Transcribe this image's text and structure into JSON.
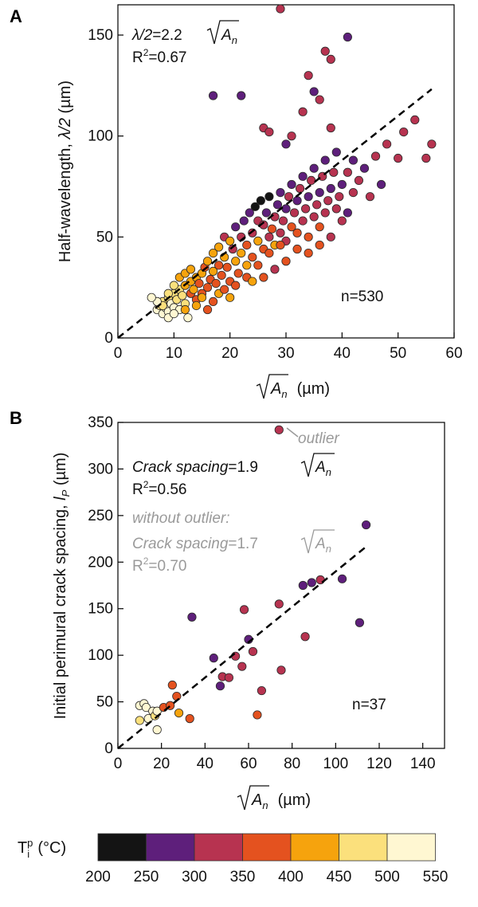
{
  "chart_data": [
    {
      "panel": "A",
      "type": "scatter",
      "xlabel": "√A_n (µm)",
      "xlabel_parts": {
        "sqrt_arg": "A",
        "sub": "n",
        "unit": "(µm)"
      },
      "ylabel": "Half-wavelength, λ/2 (µm)",
      "ylabel_parts": {
        "pre": "Half-wavelength, ",
        "ital": "λ/2",
        "post": " (µm)"
      },
      "xlim": [
        0,
        60
      ],
      "ylim": [
        0,
        165
      ],
      "xticks": [
        0,
        10,
        20,
        30,
        40,
        50,
        60
      ],
      "yticks": [
        0,
        50,
        100,
        150
      ],
      "fit": {
        "slope": 2.2,
        "x": [
          0,
          56
        ]
      },
      "equation_parts": {
        "lhs": "λ/2",
        "eq": "=2.2",
        "sqrt_arg": "A",
        "sub": "n"
      },
      "r2_parts": {
        "pre": "R",
        "sup": "2",
        "post": "=0.67"
      },
      "n_label": "n=530",
      "points_note": "530 points; representative subset listed",
      "points": [
        [
          7,
          14,
          6
        ],
        [
          7.5,
          16,
          5
        ],
        [
          8,
          12,
          6
        ],
        [
          8,
          18,
          5
        ],
        [
          8.5,
          15,
          6
        ],
        [
          9,
          13,
          6
        ],
        [
          9,
          20,
          5
        ],
        [
          9.5,
          17,
          6
        ],
        [
          10,
          22,
          5
        ],
        [
          10,
          15,
          6
        ],
        [
          10.5,
          19,
          5
        ],
        [
          11,
          24,
          5
        ],
        [
          11,
          14,
          6
        ],
        [
          11.5,
          21,
          5
        ],
        [
          12,
          26,
          4
        ],
        [
          12,
          17,
          5
        ],
        [
          12.5,
          10,
          6
        ],
        [
          13,
          28,
          4
        ],
        [
          13,
          22,
          3
        ],
        [
          13.5,
          24,
          4
        ],
        [
          14,
          30,
          4
        ],
        [
          14,
          19,
          3
        ],
        [
          14.5,
          27,
          3
        ],
        [
          15,
          32,
          4
        ],
        [
          15,
          22,
          3
        ],
        [
          15.5,
          35,
          3
        ],
        [
          16,
          25,
          3
        ],
        [
          16,
          38,
          4
        ],
        [
          16.5,
          29,
          3
        ],
        [
          17,
          33,
          4
        ],
        [
          17,
          42,
          4
        ],
        [
          17.5,
          27,
          3
        ],
        [
          18,
          36,
          3
        ],
        [
          18,
          45,
          4
        ],
        [
          18.5,
          31,
          3
        ],
        [
          19,
          40,
          4
        ],
        [
          19,
          50,
          2
        ],
        [
          19.5,
          35,
          3
        ],
        [
          20,
          48,
          4
        ],
        [
          20,
          28,
          3
        ],
        [
          20.5,
          44,
          2
        ],
        [
          21,
          38,
          4
        ],
        [
          21,
          55,
          1
        ],
        [
          21.5,
          32,
          3
        ],
        [
          22,
          50,
          2
        ],
        [
          22,
          42,
          4
        ],
        [
          22.5,
          58,
          1
        ],
        [
          23,
          46,
          3
        ],
        [
          23,
          36,
          4
        ],
        [
          23.5,
          62,
          1
        ],
        [
          24,
          52,
          2
        ],
        [
          24,
          40,
          3
        ],
        [
          24.5,
          65,
          0
        ],
        [
          25,
          48,
          4
        ],
        [
          25,
          58,
          2
        ],
        [
          25.5,
          68,
          0
        ],
        [
          26,
          44,
          3
        ],
        [
          26,
          56,
          2
        ],
        [
          26.5,
          62,
          1
        ],
        [
          27,
          50,
          2
        ],
        [
          27,
          70,
          0
        ],
        [
          27.5,
          54,
          3
        ],
        [
          28,
          60,
          2
        ],
        [
          28,
          46,
          4
        ],
        [
          28.5,
          66,
          1
        ],
        [
          29,
          52,
          2
        ],
        [
          29,
          72,
          1
        ],
        [
          29.5,
          58,
          2
        ],
        [
          30,
          64,
          1
        ],
        [
          30,
          48,
          2
        ],
        [
          30.5,
          70,
          2
        ],
        [
          31,
          55,
          3
        ],
        [
          31,
          76,
          1
        ],
        [
          31.5,
          62,
          2
        ],
        [
          32,
          68,
          1
        ],
        [
          32,
          52,
          3
        ],
        [
          32.5,
          74,
          2
        ],
        [
          33,
          58,
          2
        ],
        [
          33,
          80,
          1
        ],
        [
          33.5,
          64,
          2
        ],
        [
          34,
          70,
          1
        ],
        [
          34,
          50,
          3
        ],
        [
          34.5,
          78,
          2
        ],
        [
          35,
          60,
          2
        ],
        [
          35,
          84,
          1
        ],
        [
          35.5,
          66,
          2
        ],
        [
          36,
          72,
          1
        ],
        [
          36,
          55,
          3
        ],
        [
          36.5,
          80,
          2
        ],
        [
          37,
          62,
          2
        ],
        [
          37,
          88,
          1
        ],
        [
          37.5,
          68,
          2
        ],
        [
          38,
          74,
          1
        ],
        [
          38,
          50,
          2
        ],
        [
          38.5,
          82,
          2
        ],
        [
          39,
          64,
          2
        ],
        [
          39,
          92,
          1
        ],
        [
          39.5,
          70,
          2
        ],
        [
          40,
          76,
          1
        ],
        [
          40,
          58,
          2
        ],
        [
          41,
          82,
          2
        ],
        [
          41,
          62,
          1
        ],
        [
          42,
          72,
          2
        ],
        [
          42,
          88,
          1
        ],
        [
          43,
          78,
          2
        ],
        [
          44,
          84,
          1
        ],
        [
          45,
          70,
          2
        ],
        [
          46,
          90,
          2
        ],
        [
          47,
          76,
          1
        ],
        [
          48,
          96,
          2
        ],
        [
          50,
          89,
          2
        ],
        [
          51,
          102,
          2
        ],
        [
          53,
          108,
          2
        ],
        [
          55,
          89,
          2
        ],
        [
          56,
          96,
          2
        ],
        [
          17,
          120,
          1
        ],
        [
          22,
          120,
          1
        ],
        [
          26,
          104,
          2
        ],
        [
          27,
          102,
          2
        ],
        [
          30,
          96,
          1
        ],
        [
          31,
          100,
          2
        ],
        [
          33,
          112,
          2
        ],
        [
          35,
          122,
          1
        ],
        [
          36,
          118,
          2
        ],
        [
          37,
          142,
          2
        ],
        [
          38,
          138,
          2
        ],
        [
          41,
          149,
          1
        ],
        [
          38,
          104,
          2
        ],
        [
          34,
          130,
          2
        ],
        [
          29,
          163,
          2
        ],
        [
          12,
          14,
          4
        ],
        [
          14,
          16,
          4
        ],
        [
          16,
          14,
          3
        ],
        [
          15,
          20,
          4
        ],
        [
          17,
          18,
          3
        ],
        [
          18,
          22,
          4
        ],
        [
          19,
          24,
          3
        ],
        [
          20,
          20,
          4
        ],
        [
          21,
          26,
          3
        ],
        [
          23,
          30,
          3
        ],
        [
          25,
          36,
          3
        ],
        [
          27,
          42,
          3
        ],
        [
          29,
          46,
          3
        ],
        [
          30,
          38,
          3
        ],
        [
          32,
          44,
          3
        ],
        [
          34,
          42,
          3
        ],
        [
          36,
          46,
          3
        ],
        [
          28,
          34,
          2
        ],
        [
          26,
          30,
          3
        ],
        [
          24,
          28,
          4
        ],
        [
          11,
          30,
          4
        ],
        [
          10,
          26,
          5
        ],
        [
          9,
          22,
          5
        ],
        [
          12,
          32,
          4
        ],
        [
          13,
          34,
          4
        ],
        [
          8,
          16,
          5
        ],
        [
          7,
          18,
          6
        ],
        [
          6,
          20,
          6
        ],
        [
          9,
          10,
          6
        ],
        [
          10,
          12,
          6
        ]
      ]
    },
    {
      "panel": "B",
      "type": "scatter",
      "xlabel": "√A_n (µm)",
      "xlabel_parts": {
        "sqrt_arg": "A",
        "sub": "n",
        "unit": "(µm)"
      },
      "ylabel": "Initial perimural crack spacing, l_P (µm)",
      "ylabel_parts": {
        "pre": "Initial perimural crack spacing, ",
        "ital": "l",
        "sub": "P",
        "post": " (µm)"
      },
      "xlim": [
        0,
        150
      ],
      "ylim": [
        0,
        350
      ],
      "xticks": [
        0,
        20,
        40,
        60,
        80,
        100,
        120,
        140
      ],
      "yticks": [
        0,
        50,
        100,
        150,
        200,
        250,
        300,
        350
      ],
      "fit": {
        "slope": 1.9,
        "x": [
          0,
          114
        ]
      },
      "equation_parts": {
        "lhs": "Crack spacing",
        "eq": "=1.9",
        "sqrt_arg": "A",
        "sub": "n"
      },
      "r2_parts": {
        "pre": "R",
        "sup": "2",
        "post": "=0.56"
      },
      "outlier_label": "outlier",
      "alt_header": "without outlier:",
      "alt_equation_parts": {
        "lhs": "Crack spacing",
        "eq": "=1.7",
        "sqrt_arg": "A",
        "sub": "n"
      },
      "alt_r2_parts": {
        "pre": "R",
        "sup": "2",
        "post": "=0.70"
      },
      "n_label": "n=37",
      "points": [
        [
          10,
          30,
          5
        ],
        [
          10,
          46,
          6
        ],
        [
          12,
          48,
          6
        ],
        [
          13,
          44,
          6
        ],
        [
          14,
          32,
          6
        ],
        [
          16,
          40,
          6
        ],
        [
          17,
          35,
          5
        ],
        [
          18,
          20,
          6
        ],
        [
          18,
          40,
          6
        ],
        [
          21,
          44,
          3
        ],
        [
          24,
          46,
          3
        ],
        [
          25,
          68,
          3
        ],
        [
          27,
          56,
          3
        ],
        [
          28,
          38,
          4
        ],
        [
          33,
          32,
          3
        ],
        [
          34,
          141,
          1
        ],
        [
          44,
          97,
          1
        ],
        [
          47,
          67,
          1
        ],
        [
          48,
          77,
          2
        ],
        [
          51,
          76,
          2
        ],
        [
          54,
          99,
          2
        ],
        [
          57,
          88,
          2
        ],
        [
          58,
          149,
          2
        ],
        [
          60,
          117,
          1
        ],
        [
          62,
          104,
          2
        ],
        [
          64,
          36,
          3
        ],
        [
          66,
          62,
          2
        ],
        [
          75,
          84,
          2
        ],
        [
          74,
          155,
          2
        ],
        [
          74,
          342,
          2
        ],
        [
          85,
          175,
          1
        ],
        [
          86,
          120,
          2
        ],
        [
          89,
          178,
          1
        ],
        [
          93,
          181,
          2
        ],
        [
          103,
          182,
          1
        ],
        [
          111,
          135,
          1
        ],
        [
          114,
          240,
          1
        ]
      ]
    }
  ],
  "colorbar": {
    "label_parts": {
      "base": "T",
      "sub": "i",
      "sup": "p",
      "unit": "(°C)"
    },
    "ticks": [
      "200",
      "250",
      "300",
      "350",
      "400",
      "450",
      "500",
      "550"
    ],
    "colors": [
      "#141414",
      "#5e1f7b",
      "#b73350",
      "#e4521f",
      "#f6a30d",
      "#fbe07c",
      "#fff7d2"
    ]
  }
}
